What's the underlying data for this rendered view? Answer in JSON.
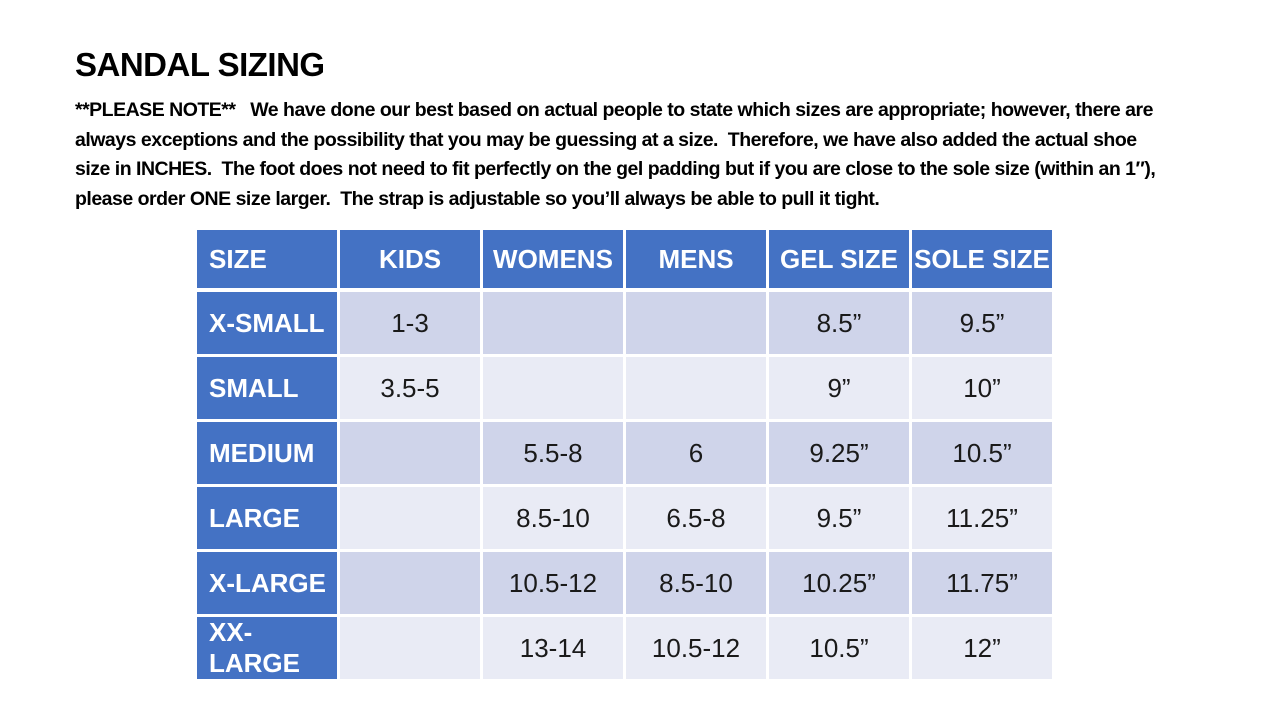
{
  "title": "SANDAL SIZING",
  "note": {
    "lines": [
      "**PLEASE NOTE**   We have done our best based on actual people to state which sizes are appropriate; however, there are",
      "always exceptions and the possibility that you may be guessing at a size.  Therefore, we have also added the actual shoe",
      "size in INCHES.  The foot does not need to fit perfectly on the gel padding but if you are close to the sole size (within an 1″),",
      "please order ONE size larger.  The strap is adjustable so you’ll always be able to pull it tight."
    ]
  },
  "table": {
    "columns": [
      "SIZE",
      "KIDS",
      "WOMENS",
      "MENS",
      "GEL SIZE",
      "SOLE SIZE"
    ],
    "rows": [
      [
        "X-SMALL",
        "1-3",
        "",
        "",
        "8.5”",
        "9.5”"
      ],
      [
        "SMALL",
        "3.5-5",
        "",
        "",
        "9”",
        "10”"
      ],
      [
        "MEDIUM",
        "",
        "5.5-8",
        "6",
        "9.25”",
        "10.5”"
      ],
      [
        "LARGE",
        "",
        "8.5-10",
        "6.5-8",
        "9.5”",
        "11.25”"
      ],
      [
        "X-LARGE",
        "",
        "10.5-12",
        "8.5-10",
        "10.25”",
        "11.75”"
      ],
      [
        "XX-LARGE",
        "",
        "13-14",
        "10.5-12",
        "10.5”",
        "12”"
      ]
    ]
  },
  "colors": {
    "header_blue": "#4472C4",
    "band_dark": "#CFD4EA",
    "band_light": "#E9EBF5",
    "grid_white": "#FFFFFF",
    "text_dark": "#1A1A1A",
    "text_light": "#FFFFFF"
  }
}
